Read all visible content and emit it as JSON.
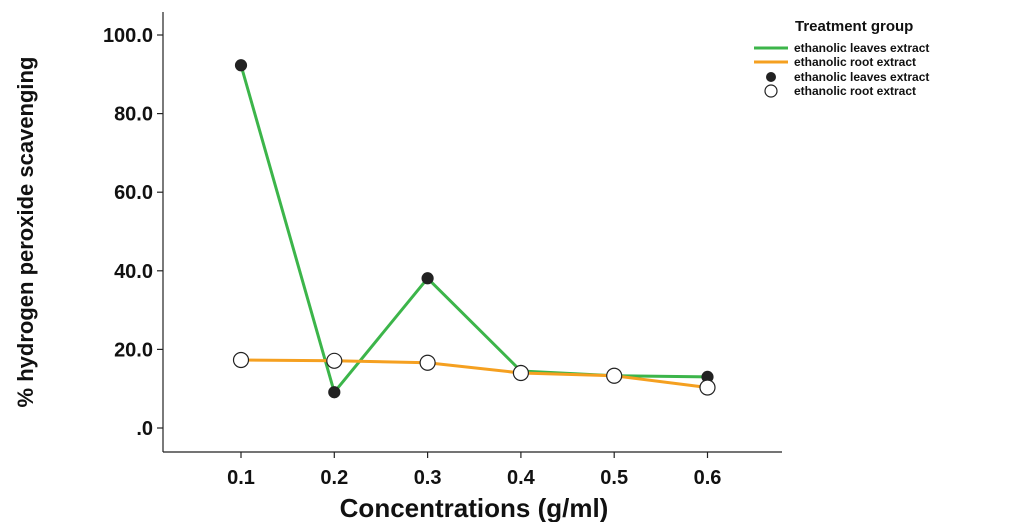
{
  "chart_data": {
    "type": "line",
    "xlabel": "Concentrations (g/ml)",
    "ylabel": "% hydrogen peroxide scavenging",
    "categories": [
      "0.1",
      "0.2",
      "0.3",
      "0.4",
      "0.5",
      "0.6"
    ],
    "y_ticks": [
      ".0",
      "20.0",
      "40.0",
      "60.0",
      "80.0",
      "100.0"
    ],
    "y_tick_values": [
      0,
      20,
      40,
      60,
      80,
      100
    ],
    "ylim": [
      -7,
      106
    ],
    "grid": false,
    "legend": {
      "title": "Treatment group",
      "placement": "top-right",
      "entries": [
        {
          "label": "ethanolic leaves extract",
          "symbol": "line",
          "color": "#3cb54a"
        },
        {
          "label": "ethanolic root extract",
          "symbol": "line",
          "color": "#f5a020"
        },
        {
          "label": "ethanolic leaves extract",
          "symbol": "filled-circle",
          "color": "#222222"
        },
        {
          "label": "ethanolic root extract",
          "symbol": "open-circle",
          "color": "#222222"
        }
      ]
    },
    "series": [
      {
        "name": "ethanolic leaves extract",
        "color": "#3cb54a",
        "marker": "filled-circle",
        "values": [
          92.3,
          9.1,
          38.1,
          14.5,
          13.3,
          13.0
        ]
      },
      {
        "name": "ethanolic root extract",
        "color": "#f5a020",
        "marker": "open-circle",
        "values": [
          17.3,
          17.1,
          16.6,
          14.0,
          13.3,
          10.3
        ]
      }
    ]
  }
}
